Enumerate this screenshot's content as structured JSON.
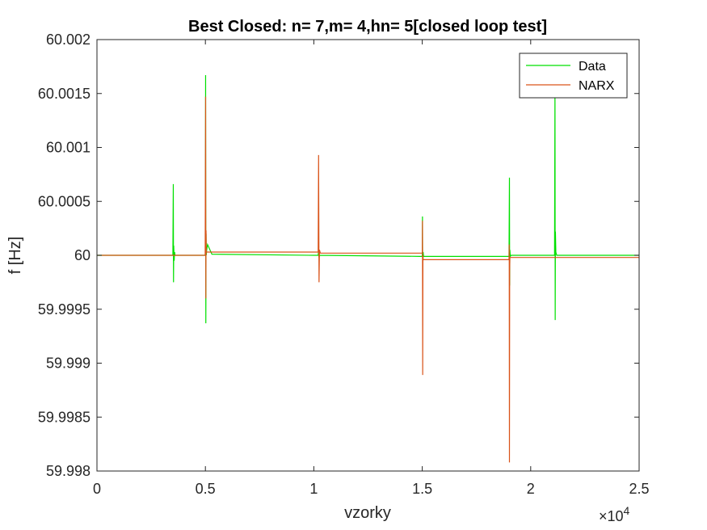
{
  "chart_data": {
    "type": "line",
    "title": "Best Closed: n= 7,m= 4,hn= 5[closed loop test]",
    "xlabel": "vzorky",
    "ylabel": "f [Hz]",
    "x_exponent_label": "×10",
    "x_exponent_power": "4",
    "xlim": [
      0,
      25000
    ],
    "ylim": [
      59.998,
      60.002
    ],
    "x_ticks": [
      0,
      5000,
      10000,
      15000,
      20000,
      25000
    ],
    "x_tick_labels": [
      "0",
      "0.5",
      "1",
      "1.5",
      "2",
      "2.5"
    ],
    "y_ticks": [
      59.998,
      59.9985,
      59.999,
      59.9995,
      60.0,
      60.0005,
      60.001,
      60.0015,
      60.002
    ],
    "y_tick_labels": [
      "59.998",
      "59.9985",
      "59.999",
      "59.9995",
      "60",
      "60.0005",
      "60.001",
      "60.0015",
      "60.002"
    ],
    "grid": false,
    "legend_position": "top-right",
    "series": [
      {
        "name": "Data",
        "color": "#00e000",
        "x": [
          0,
          3500,
          3520,
          3530,
          3540,
          3560,
          3580,
          3600,
          5000,
          5010,
          5020,
          5030,
          5040,
          5060,
          5100,
          5300,
          10000,
          10200,
          10220,
          10240,
          10260,
          14900,
          15000,
          15010,
          15020,
          15040,
          15060,
          15200,
          19000,
          19020,
          19030,
          19040,
          19060,
          19100,
          21100,
          21120,
          21130,
          21140,
          21160,
          21200,
          21500,
          25000
        ],
        "y": [
          60.0,
          60.0,
          60.00066,
          59.99975,
          60.00009,
          59.99995,
          60.00003,
          60.0,
          60.0,
          60.00167,
          59.99937,
          60.0002,
          60.0,
          60.00005,
          60.0001,
          60.00001,
          60.0,
          60.0,
          60.00004,
          59.99998,
          60.0,
          59.99999,
          59.99999,
          60.00036,
          59.99985,
          60.00003,
          59.99999,
          59.99999,
          59.99999,
          60.00072,
          59.99972,
          60.00005,
          59.99999,
          60.0,
          60.0,
          60.00155,
          59.9994,
          60.00022,
          60.00003,
          60.0,
          60.0,
          60.0
        ]
      },
      {
        "name": "NARX",
        "color": "#d95319",
        "x": [
          0,
          4990,
          5010,
          5020,
          5030,
          5040,
          5060,
          5100,
          10200,
          10220,
          10240,
          10260,
          10300,
          15000,
          15010,
          15020,
          15030,
          15040,
          15080,
          19000,
          19010,
          19020,
          19030,
          19040,
          19080,
          25000
        ],
        "y": [
          60.0,
          60.0,
          60.00147,
          59.9996,
          60.00023,
          60.00003,
          60.00003,
          60.00003,
          60.00003,
          60.00093,
          59.99975,
          60.00005,
          60.00002,
          60.00002,
          60.00032,
          59.99889,
          60.0,
          59.99996,
          59.99996,
          59.99996,
          60.0001,
          59.99808,
          59.99985,
          59.99998,
          59.99998,
          59.99998
        ]
      }
    ]
  }
}
